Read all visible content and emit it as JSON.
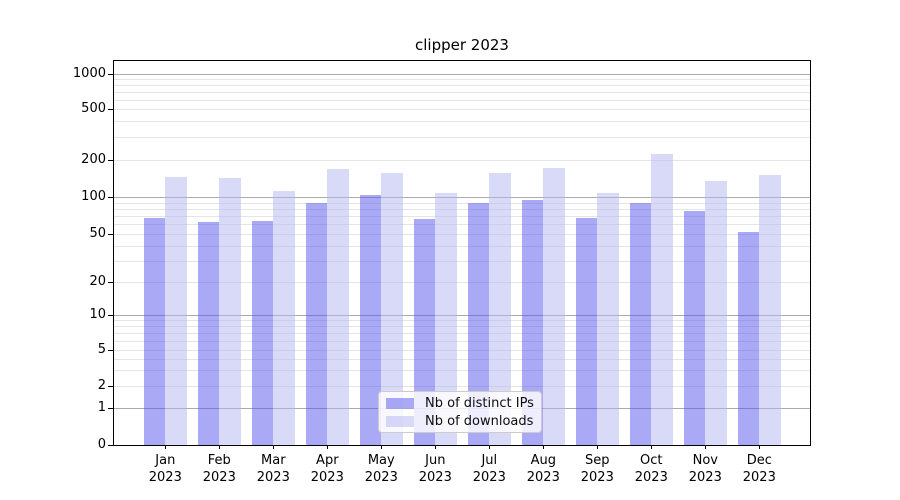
{
  "chart_data": {
    "type": "bar",
    "title": "clipper 2023",
    "categories": [
      "Jan",
      "Feb",
      "Mar",
      "Apr",
      "May",
      "Jun",
      "Jul",
      "Aug",
      "Sep",
      "Oct",
      "Nov",
      "Dec"
    ],
    "x_year": "2023",
    "series": [
      {
        "name": "Nb of distinct IPs",
        "color": "#5353ec",
        "alpha": 0.5,
        "values": [
          67,
          63,
          64,
          90,
          104,
          66,
          90,
          94,
          67,
          89,
          77,
          52
        ]
      },
      {
        "name": "Nb of downloads",
        "color": "#b4b4f2",
        "alpha": 0.5,
        "values": [
          145,
          142,
          112,
          170,
          156,
          107,
          156,
          173,
          107,
          222,
          135,
          150
        ]
      }
    ],
    "y_ticks": [
      0,
      1,
      2,
      5,
      10,
      20,
      50,
      100,
      200,
      500,
      1000
    ],
    "y_minor_ticks": [
      3,
      4,
      6,
      7,
      8,
      9,
      30,
      40,
      60,
      70,
      80,
      90,
      300,
      400,
      600,
      700,
      800,
      900
    ],
    "y_scale": "symlog",
    "ylim": [
      0,
      1300
    ],
    "grid": true,
    "legend": {
      "position": "lower center",
      "entries": [
        "Nb of distinct IPs",
        "Nb of downloads"
      ]
    }
  }
}
